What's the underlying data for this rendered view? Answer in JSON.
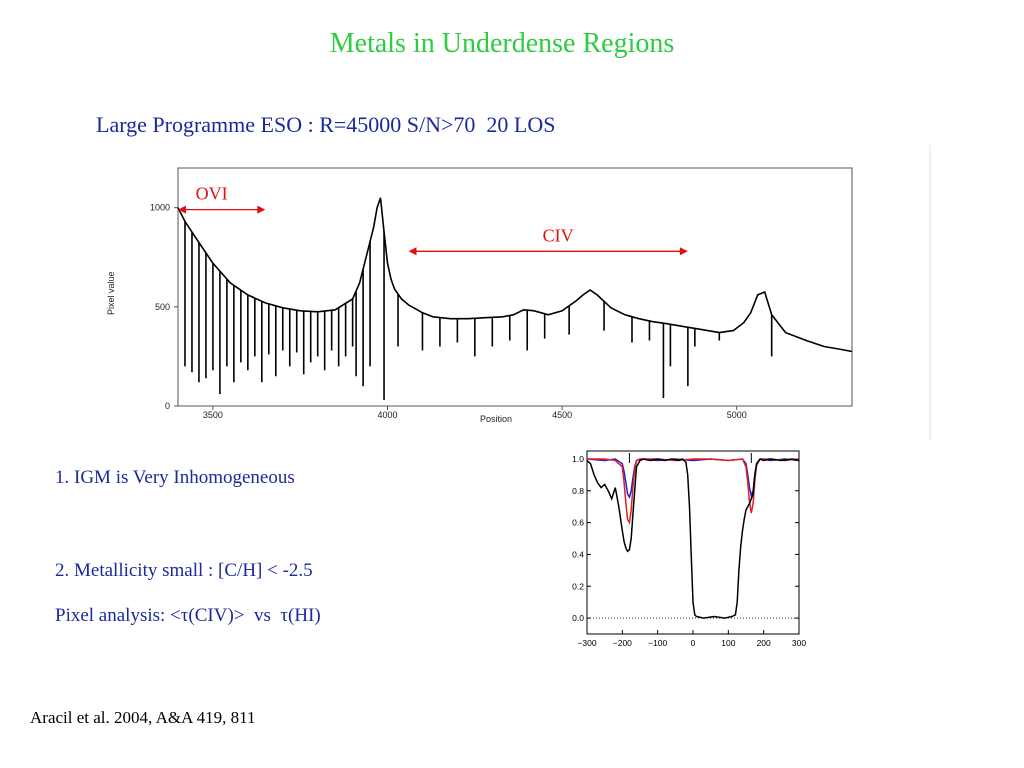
{
  "slide": {
    "title": "Metals in Underdense Regions",
    "subtitle": "Large Programme ESO : R=45000 S/N>70  20 LOS",
    "bullets": [
      "1. IGM is Very Inhomogeneous",
      "2. Metallicity small : [C/H] < -2.5",
      "Pixel analysis: <τ(CIV)>  vs  τ(HI)"
    ],
    "citation": "Aracil et al. 2004, A&A 419, 811"
  },
  "colors": {
    "title": "#2ecc40",
    "text": "#1a2a9c",
    "arrow": "#e01010",
    "spectrum": "#000000",
    "series_blue": "#2020d0",
    "series_red": "#e02020"
  },
  "chart_data": [
    {
      "type": "line",
      "xlabel": "Position",
      "ylabel": "Pixel value",
      "xlim": [
        3400,
        5330
      ],
      "ylim": [
        0,
        1200
      ],
      "xticks": [
        "3500",
        "4000",
        "4500",
        "5000"
      ],
      "yticks": [
        "0",
        "500",
        "1000"
      ],
      "continuum": {
        "x": [
          3400,
          3420,
          3450,
          3500,
          3550,
          3600,
          3650,
          3700,
          3750,
          3800,
          3850,
          3900,
          3920,
          3940,
          3960,
          3970,
          3980,
          3990,
          4000,
          4010,
          4020,
          4040,
          4060,
          4080,
          4100,
          4130,
          4180,
          4230,
          4280,
          4330,
          4360,
          4390,
          4420,
          4460,
          4500,
          4540,
          4560,
          4580,
          4600,
          4640,
          4680,
          4720,
          4760,
          4800,
          4850,
          4900,
          4950,
          4990,
          5020,
          5040,
          5060,
          5080,
          5100,
          5140,
          5200,
          5250,
          5300,
          5330
        ],
        "y": [
          1000,
          930,
          850,
          720,
          620,
          560,
          520,
          495,
          480,
          475,
          485,
          540,
          620,
          760,
          900,
          1000,
          1050,
          880,
          720,
          640,
          590,
          540,
          510,
          490,
          470,
          450,
          440,
          440,
          445,
          450,
          460,
          485,
          480,
          460,
          480,
          530,
          560,
          585,
          560,
          495,
          460,
          440,
          425,
          415,
          400,
          385,
          370,
          380,
          420,
          470,
          560,
          575,
          460,
          370,
          330,
          300,
          285,
          275
        ]
      },
      "absorption_lines": {
        "x": [
          3420,
          3440,
          3460,
          3480,
          3500,
          3520,
          3540,
          3560,
          3580,
          3600,
          3620,
          3640,
          3660,
          3680,
          3700,
          3720,
          3740,
          3760,
          3780,
          3800,
          3820,
          3840,
          3860,
          3880,
          3900,
          3910,
          3930,
          3950,
          3990,
          4030,
          4100,
          4150,
          4200,
          4250,
          4300,
          4350,
          4400,
          4450,
          4520,
          4620,
          4700,
          4750,
          4790,
          4810,
          4860,
          4880,
          4950,
          5100
        ],
        "y": [
          200,
          170,
          120,
          140,
          180,
          60,
          200,
          120,
          220,
          180,
          250,
          120,
          260,
          150,
          280,
          200,
          270,
          160,
          220,
          250,
          180,
          280,
          200,
          250,
          300,
          150,
          100,
          200,
          30,
          300,
          280,
          300,
          320,
          250,
          300,
          330,
          280,
          340,
          360,
          380,
          320,
          330,
          40,
          200,
          100,
          300,
          330,
          250
        ]
      },
      "annotations": [
        {
          "label": "OVI",
          "x_from": 3400,
          "x_to": 3650,
          "y": 990
        },
        {
          "label": "CIV",
          "x_from": 4060,
          "x_to": 4860,
          "y": 780
        }
      ]
    },
    {
      "type": "line",
      "xlim": [
        -300,
        300
      ],
      "ylim": [
        -0.1,
        1.05
      ],
      "xticks": [
        "−300",
        "−200",
        "−100",
        "0",
        "100",
        "200",
        "300"
      ],
      "yticks": [
        "0.0",
        "0.2",
        "0.4",
        "0.6",
        "0.8",
        "1.0"
      ],
      "tick_markers_x": [
        -180,
        165
      ],
      "series": [
        {
          "color": "black",
          "x": [
            -300,
            -290,
            -280,
            -270,
            -260,
            -250,
            -240,
            -230,
            -220,
            -210,
            -200,
            -195,
            -190,
            -185,
            -180,
            -175,
            -170,
            -165,
            -160,
            -150,
            -140,
            -120,
            -100,
            -80,
            -60,
            -40,
            -30,
            -20,
            -15,
            -10,
            -5,
            0,
            5,
            10,
            30,
            60,
            90,
            110,
            120,
            125,
            130,
            135,
            140,
            145,
            150,
            155,
            160,
            165,
            170,
            175,
            180,
            190,
            200,
            220,
            250,
            280,
            300
          ],
          "y": [
            0.99,
            0.97,
            0.9,
            0.85,
            0.82,
            0.84,
            0.8,
            0.75,
            0.82,
            0.7,
            0.55,
            0.48,
            0.44,
            0.42,
            0.43,
            0.5,
            0.65,
            0.8,
            0.95,
            0.99,
            1.0,
            0.99,
            1.0,
            0.99,
            1.0,
            0.99,
            1.0,
            0.98,
            0.9,
            0.7,
            0.4,
            0.1,
            0.02,
            0.01,
            0.0,
            0.01,
            0.0,
            0.01,
            0.02,
            0.1,
            0.3,
            0.45,
            0.55,
            0.62,
            0.68,
            0.7,
            0.72,
            0.75,
            0.78,
            0.9,
            0.97,
            1.0,
            0.99,
            1.0,
            0.99,
            1.0,
            0.99
          ]
        },
        {
          "color": "blue",
          "x": [
            -300,
            -250,
            -220,
            -200,
            -195,
            -190,
            -185,
            -180,
            -175,
            -170,
            -165,
            -160,
            -150,
            -100,
            -50,
            0,
            50,
            100,
            140,
            150,
            155,
            160,
            165,
            170,
            175,
            180,
            190,
            220,
            260,
            300
          ],
          "y": [
            1.0,
            0.99,
            1.0,
            0.97,
            0.92,
            0.85,
            0.78,
            0.76,
            0.8,
            0.88,
            0.95,
            0.99,
            1.0,
            0.99,
            1.0,
            0.99,
            1.0,
            0.99,
            1.0,
            0.97,
            0.9,
            0.82,
            0.77,
            0.8,
            0.9,
            0.97,
            1.0,
            0.99,
            1.0,
            0.99
          ]
        },
        {
          "color": "red",
          "x": [
            -300,
            -250,
            -220,
            -200,
            -195,
            -190,
            -185,
            -180,
            -175,
            -170,
            -165,
            -160,
            -150,
            -100,
            -50,
            0,
            50,
            100,
            140,
            150,
            155,
            160,
            165,
            170,
            175,
            180,
            190,
            220,
            260,
            300
          ],
          "y": [
            1.0,
            1.0,
            0.99,
            0.95,
            0.85,
            0.72,
            0.62,
            0.6,
            0.68,
            0.82,
            0.93,
            0.99,
            1.0,
            1.0,
            0.99,
            1.0,
            1.0,
            0.99,
            1.0,
            0.95,
            0.85,
            0.73,
            0.66,
            0.72,
            0.86,
            0.96,
            1.0,
            1.0,
            0.99,
            1.0
          ]
        }
      ]
    }
  ]
}
